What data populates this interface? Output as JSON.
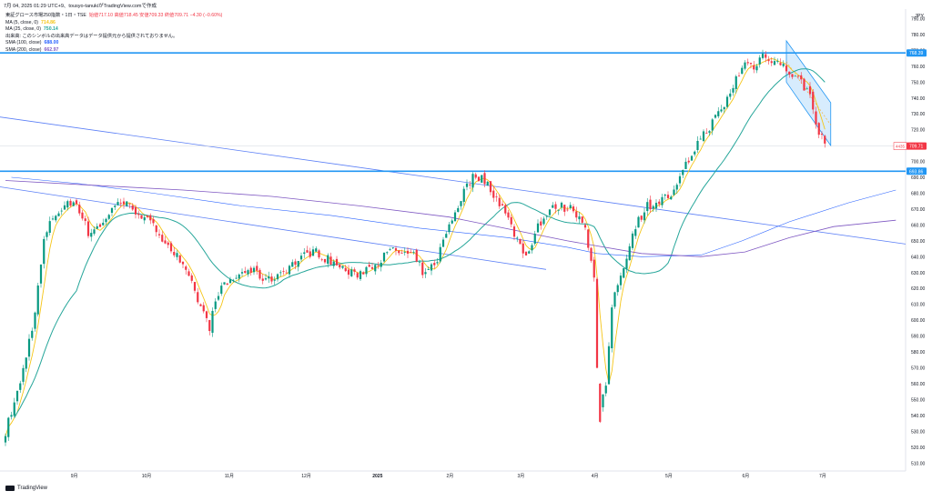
{
  "header": {
    "note": "7月 04, 2025 01:29 UTC+9、tousyo-tanukiがTradingView.comで作成"
  },
  "legend": {
    "title": "東証グロース市場250指数・1日・TSE",
    "ohlc": "始値717.10  高値718.45  安値709.33  終値709.71  −4.30 (−0.60%)",
    "lines": [
      {
        "label": "MA (5, close, 0)",
        "value": "714.86",
        "color": "#f5c518"
      },
      {
        "label": "MA (25, close, 0)",
        "value": "750.14",
        "color": "#26a69a"
      },
      {
        "label": "出来高: このシンボルの出来高データはデータ提供元から提供されておりません。",
        "value": "",
        "color": "#131722"
      },
      {
        "label": "SMA (100, close)",
        "value": "688.00",
        "color": "#2962ff"
      },
      {
        "label": "SMA (200, close)",
        "value": "662.97",
        "color": "#7e57c2"
      }
    ]
  },
  "currency": "JPY",
  "logo_text": "TradingView",
  "chart_data": {
    "type": "candlestick",
    "ylim": [
      505,
      796
    ],
    "yticks": [
      510,
      520,
      530,
      540,
      550,
      560,
      570,
      580,
      590,
      600,
      610,
      620,
      630,
      640,
      650,
      660,
      670,
      680,
      690,
      700,
      710,
      720,
      730,
      740,
      750,
      760,
      770,
      780,
      790
    ],
    "xticks": [
      "9月",
      "10月",
      "11月",
      "12月",
      "2025",
      "2月",
      "3月",
      "4月",
      "5月",
      "6月",
      "7月"
    ],
    "hlines": [
      {
        "value": 768.39,
        "label": "768.39",
        "color": "#2196f3"
      },
      {
        "value": 693.86,
        "label": "693.86",
        "color": "#2196f3"
      }
    ],
    "last_price": {
      "value": 709.71,
      "label": "709.71",
      "tag": "4435",
      "color": "#f23645"
    },
    "up_color": "#089981",
    "down_color": "#f23645",
    "sma100": [
      [
        2,
        690
      ],
      [
        25,
        686
      ],
      [
        50,
        680
      ],
      [
        80,
        672
      ],
      [
        110,
        666
      ],
      [
        140,
        658
      ],
      [
        170,
        652
      ],
      [
        190,
        646
      ],
      [
        200,
        642
      ],
      [
        215,
        640
      ],
      [
        235,
        641
      ],
      [
        249,
        650
      ],
      [
        265,
        662
      ],
      [
        285,
        674
      ],
      [
        301,
        682
      ]
    ],
    "sma200": [
      [
        0,
        688
      ],
      [
        30,
        685
      ],
      [
        60,
        682
      ],
      [
        90,
        678
      ],
      [
        120,
        672
      ],
      [
        150,
        665
      ],
      [
        190,
        650
      ],
      [
        215,
        642
      ],
      [
        235,
        640
      ],
      [
        250,
        643
      ],
      [
        265,
        652
      ],
      [
        280,
        659
      ],
      [
        301,
        663
      ]
    ]
  },
  "fmt": {
    "ma": {
      "label": "MA"
    },
    "trendline_note": ""
  }
}
